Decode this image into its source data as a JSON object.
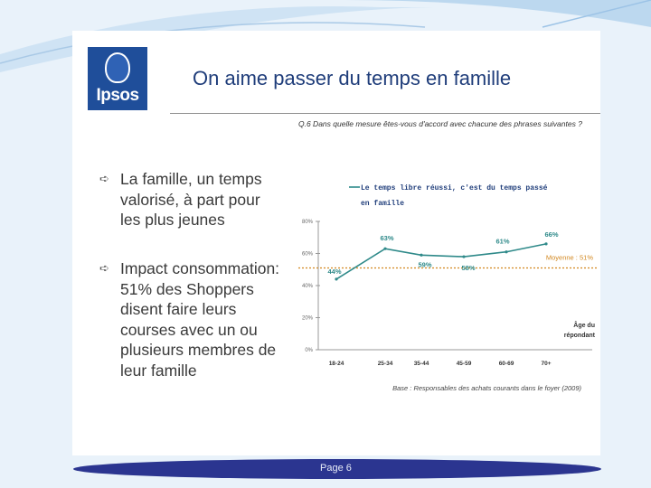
{
  "logo": {
    "text": "Ipsos"
  },
  "title": "On aime passer du temps en famille",
  "question": "Q.6   Dans quelle mesure êtes-vous d'accord avec chacune des phrases suivantes ?",
  "bullets": [
    {
      "text": "La famille, un temps valorisé, à part pour les plus jeunes"
    },
    {
      "text": "Impact consommation: 51% des Shoppers disent faire leurs courses avec un ou plusieurs membres de leur famille"
    }
  ],
  "footer": {
    "page_label": "Page 6"
  },
  "colors": {
    "series": "#2f8a8a",
    "average": "#d2871f",
    "title": "#1f3d7a",
    "band": "#2b3590"
  },
  "chart_data": {
    "type": "line",
    "categories": [
      "18-24",
      "25-34",
      "35-44",
      "45-59",
      "60-69",
      "70+"
    ],
    "series": [
      {
        "name": "Le temps libre réussi, c'est du temps passé en famille",
        "values": [
          44,
          63,
          59,
          58,
          61,
          66
        ],
        "labels": [
          "44%",
          "63%",
          "59%",
          "58%",
          "61%",
          "66%"
        ]
      }
    ],
    "average": {
      "value": 51,
      "label": "Moyenne : 51%"
    },
    "ylim": [
      0,
      80
    ],
    "yticks": [
      0,
      20,
      40,
      60,
      80
    ],
    "ytick_labels": [
      "0%",
      "20%",
      "40%",
      "60%",
      "80%"
    ],
    "xlabel": "Âge du répondant",
    "source": "Base : Responsables des achats courants dans le foyer (2009)",
    "grid": false
  }
}
